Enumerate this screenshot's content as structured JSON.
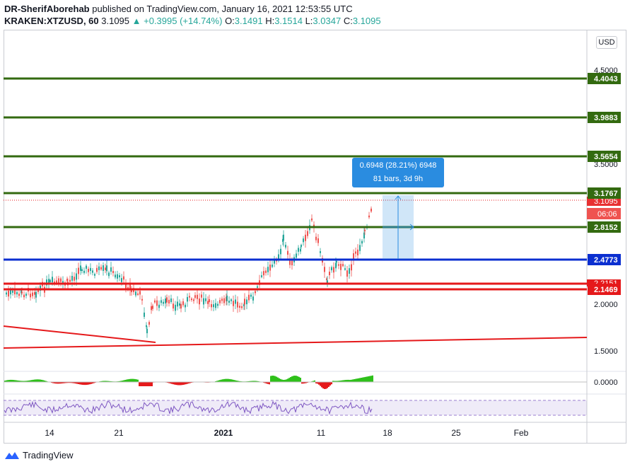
{
  "header": {
    "author": "DR-SherifAborehab",
    "published_text": "published on TradingView.com, January 16, 2021 12:53:55 UTC",
    "symbol": "KRAKEN:XTZUSD, 60",
    "price": "3.1095",
    "change": "▲ +0.3995 (+14.74%)",
    "o_label": "O:",
    "o_value": "3.1491",
    "h_label": "H:",
    "h_value": "3.1514",
    "l_label": "L:",
    "l_value": "3.0347",
    "c_label": "C:",
    "c_value": "3.1095"
  },
  "currency_button": "USD",
  "price_axis": {
    "ticks": [
      "4.5000",
      "3.5000",
      "2.0000",
      "1.5000"
    ],
    "levels": [
      {
        "label": "4.4043",
        "color": "#336a10"
      },
      {
        "label": "3.9883",
        "color": "#336a10"
      },
      {
        "label": "3.5654",
        "color": "#336a10"
      },
      {
        "label": "3.1767",
        "color": "#336a10"
      },
      {
        "label": "2.8152",
        "color": "#336a10"
      },
      {
        "label": "2.4773",
        "color": "#0b2fd0"
      },
      {
        "label": "2.1469",
        "color": "#e5191b"
      }
    ],
    "current_price_partial": "3.1095",
    "countdown": "06:06",
    "red_level_partial": "2.2151",
    "indicator_zero": "0.0000"
  },
  "time_axis": [
    "14",
    "21",
    "2021",
    "11",
    "18",
    "25",
    "Feb"
  ],
  "measure_box": {
    "line1": "0.6948 (28.21%) 6948",
    "line2": "81 bars, 3d 9h"
  },
  "footer": {
    "brand": "TradingView"
  },
  "colors": {
    "green_line": "#336a10",
    "blue_line": "#0b2fd0",
    "red_line": "#e5191b",
    "bull": "#26a69a",
    "bear": "#ef5350",
    "measure": "#2a8ce0",
    "rsi": "#7e57c2"
  }
}
